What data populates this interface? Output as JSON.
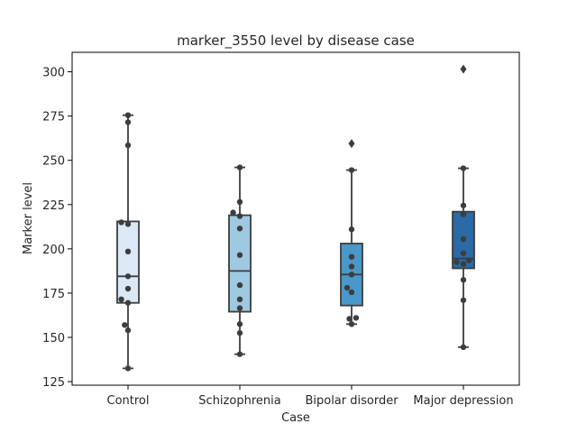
{
  "chart_data": {
    "type": "box",
    "title": "marker_3550 level by disease case",
    "xlabel": "Case",
    "ylabel": "Marker level",
    "ylim": [
      123,
      311
    ],
    "yticks": [
      125,
      150,
      175,
      200,
      225,
      250,
      275,
      300
    ],
    "grid": false,
    "legend": "none",
    "categories": [
      "Control",
      "Schizophrenia",
      "Bipolar disorder",
      "Major depression"
    ],
    "box_colors": [
      "#dbe8f5",
      "#9ec9e1",
      "#4a98c9",
      "#2b6aa4"
    ],
    "edge_color": "#3d3d3d",
    "point_color": "#3d3d3d",
    "boxes": [
      {
        "name": "Control",
        "q1": 169.5,
        "median": 184.5,
        "q3": 215.5,
        "whisker_low": 132.5,
        "whisker_high": 275.5,
        "outliers": []
      },
      {
        "name": "Schizophrenia",
        "q1": 164.5,
        "median": 187.5,
        "q3": 219,
        "whisker_low": 140.5,
        "whisker_high": 246,
        "outliers": []
      },
      {
        "name": "Bipolar disorder",
        "q1": 168,
        "median": 185.5,
        "q3": 203,
        "whisker_low": 157.5,
        "whisker_high": 244.5,
        "outliers": [
          259.5
        ]
      },
      {
        "name": "Major depression",
        "q1": 189,
        "median": 194.5,
        "q3": 221,
        "whisker_low": 144.5,
        "whisker_high": 245.5,
        "outliers": [
          301.5
        ]
      }
    ],
    "points": [
      [
        {
          "dx": 0.0,
          "y": 275.5
        },
        {
          "dx": 0.0,
          "y": 271.5
        },
        {
          "dx": 0.0,
          "y": 258.5
        },
        {
          "dx": -0.06,
          "y": 215.0
        },
        {
          "dx": 0.0,
          "y": 214.0
        },
        {
          "dx": 0.0,
          "y": 198.5
        },
        {
          "dx": 0.0,
          "y": 184.5
        },
        {
          "dx": 0.0,
          "y": 177.5
        },
        {
          "dx": -0.06,
          "y": 171.5
        },
        {
          "dx": 0.0,
          "y": 169.5
        },
        {
          "dx": -0.03,
          "y": 157.0
        },
        {
          "dx": 0.0,
          "y": 154.0
        },
        {
          "dx": 0.0,
          "y": 132.5
        }
      ],
      [
        {
          "dx": 0.0,
          "y": 246.0
        },
        {
          "dx": 0.0,
          "y": 226.5
        },
        {
          "dx": -0.06,
          "y": 220.5
        },
        {
          "dx": 0.0,
          "y": 218.5
        },
        {
          "dx": 0.0,
          "y": 211.5
        },
        {
          "dx": 0.0,
          "y": 196.5
        },
        {
          "dx": 0.0,
          "y": 179.5
        },
        {
          "dx": 0.0,
          "y": 171.5
        },
        {
          "dx": 0.0,
          "y": 166.5
        },
        {
          "dx": 0.0,
          "y": 157.5
        },
        {
          "dx": 0.0,
          "y": 152.5
        },
        {
          "dx": 0.0,
          "y": 140.5
        }
      ],
      [
        {
          "dx": 0.0,
          "y": 244.5
        },
        {
          "dx": 0.0,
          "y": 211.0
        },
        {
          "dx": 0.0,
          "y": 195.5
        },
        {
          "dx": 0.0,
          "y": 190.0
        },
        {
          "dx": 0.0,
          "y": 185.5
        },
        {
          "dx": -0.04,
          "y": 178.0
        },
        {
          "dx": 0.0,
          "y": 175.5
        },
        {
          "dx": -0.02,
          "y": 160.5
        },
        {
          "dx": 0.04,
          "y": 161.0
        },
        {
          "dx": 0.0,
          "y": 157.5
        }
      ],
      [
        {
          "dx": 0.0,
          "y": 245.5
        },
        {
          "dx": 0.0,
          "y": 224.5
        },
        {
          "dx": 0.0,
          "y": 219.5
        },
        {
          "dx": 0.0,
          "y": 205.5
        },
        {
          "dx": 0.0,
          "y": 197.5
        },
        {
          "dx": -0.06,
          "y": 192.5
        },
        {
          "dx": 0.0,
          "y": 191.5
        },
        {
          "dx": 0.05,
          "y": 193.5
        },
        {
          "dx": 0.0,
          "y": 182.5
        },
        {
          "dx": 0.0,
          "y": 171.0
        },
        {
          "dx": 0.0,
          "y": 144.5
        }
      ]
    ]
  }
}
